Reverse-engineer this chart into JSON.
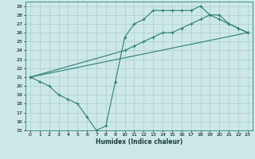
{
  "xlabel": "Humidex (Indice chaleur)",
  "bg_color": "#cce8e8",
  "line_color": "#2e7d72",
  "grid_color": "#aacccc",
  "xlim": [
    -0.5,
    23.5
  ],
  "ylim": [
    15,
    29.5
  ],
  "xticks": [
    0,
    1,
    2,
    3,
    4,
    5,
    6,
    7,
    8,
    9,
    10,
    11,
    12,
    13,
    14,
    15,
    16,
    17,
    18,
    19,
    20,
    21,
    22,
    23
  ],
  "yticks": [
    15,
    16,
    17,
    18,
    19,
    20,
    21,
    22,
    23,
    24,
    25,
    26,
    27,
    28,
    29
  ],
  "curve1_x": [
    0,
    1,
    2,
    3,
    4,
    5,
    6,
    7,
    8,
    9,
    10,
    11,
    12,
    13,
    14,
    15,
    16,
    17,
    18,
    19,
    20,
    21,
    22,
    23
  ],
  "curve1_y": [
    21,
    20.5,
    20,
    19,
    18.5,
    18,
    16.5,
    15,
    15.5,
    20.5,
    25.5,
    27,
    27.5,
    28.5,
    28.5,
    28.5,
    28.5,
    28.5,
    29,
    28,
    27.5,
    27,
    26.5,
    26
  ],
  "curve2_x": [
    0,
    10,
    11,
    12,
    13,
    14,
    15,
    16,
    17,
    18,
    19,
    20,
    21,
    22,
    23
  ],
  "curve2_y": [
    21,
    24,
    24.5,
    25,
    25.5,
    26,
    26,
    26.5,
    27,
    27.5,
    28,
    28,
    27,
    26.5,
    26
  ],
  "curve3_x": [
    0,
    23
  ],
  "curve3_y": [
    21,
    26
  ]
}
